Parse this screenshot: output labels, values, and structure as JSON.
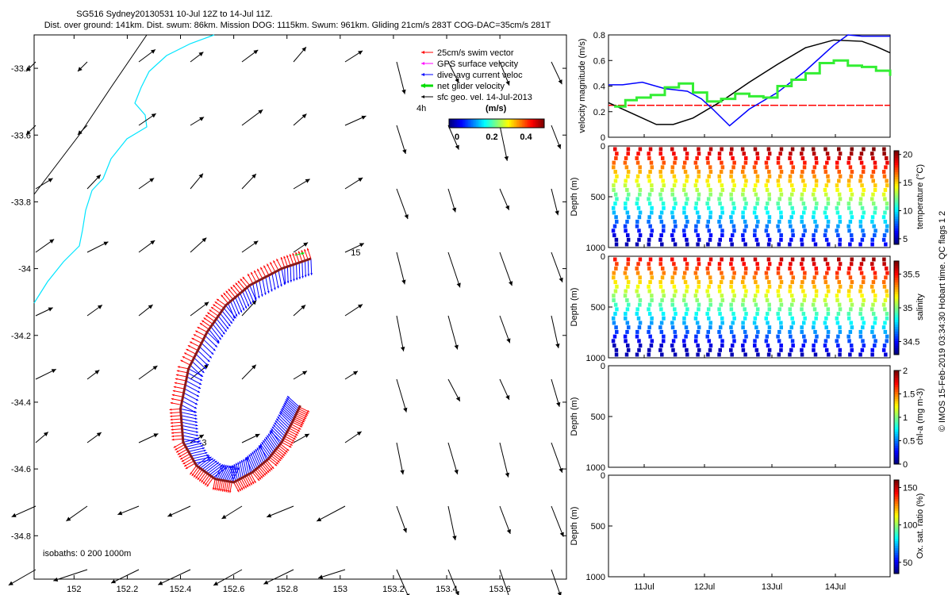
{
  "header": {
    "title_line1": "SG516 Sydney20130531 10-Jul 12Z to 14-Jul 11Z.",
    "title_line2": "Dist. over ground: 141km. Dist. swum: 86km. Mission DOG: 1115km. Swum: 961km. Gliding 21cm/s 283T COG-DAC=35cm/s 281T"
  },
  "colors": {
    "swim_vector": "#ff0000",
    "gps_surface": "#ff00ff",
    "dive_avg_current": "#0000ff",
    "net_glider": "#00dd00",
    "sfc_geo": "#000000",
    "coastline": "#00e5ff",
    "track": "#8b1a1a"
  },
  "chart_data": [
    {
      "type": "scatter",
      "name": "map",
      "xlim": [
        151.85,
        153.85
      ],
      "ylim": [
        -34.93,
        -33.3
      ],
      "xticks": [
        "152",
        "152.2",
        "152.4",
        "152.6",
        "152.8",
        "153",
        "153.2",
        "153.4",
        "153.6"
      ],
      "yticks": [
        "-33.4",
        "-33.6",
        "-33.8",
        "-34",
        "-34.2",
        "-34.4",
        "-34.6",
        "-34.8"
      ],
      "legend": {
        "placement": "top-right",
        "items": [
          {
            "label": "25cm/s swim vector",
            "color": "#ff0000"
          },
          {
            "label": "GPS surface velocity",
            "color": "#ff00ff"
          },
          {
            "label": "dive-avg current veloc",
            "color": "#0000ff"
          },
          {
            "label": "net glider velocity",
            "color": "#00dd00"
          },
          {
            "label": "sfc geo. vel. 14-Jul-2013",
            "color": "#000000"
          }
        ],
        "time_label": "4h",
        "colorbar_unit": "(m/s)",
        "colorbar_ticks": [
          "0",
          "0.2",
          "0.4"
        ]
      },
      "isobaths_label": "isobaths: 0   200  1000m",
      "annotations": [
        {
          "text": "15",
          "x": 153.04,
          "y": -33.96
        },
        {
          "text": "3",
          "x": 152.48,
          "y": -34.53
        }
      ],
      "track_points": [
        [
          152.89,
          -33.97
        ],
        [
          152.78,
          -34.0
        ],
        [
          152.66,
          -34.05
        ],
        [
          152.57,
          -34.11
        ],
        [
          152.5,
          -34.19
        ],
        [
          152.43,
          -34.3
        ],
        [
          152.4,
          -34.42
        ],
        [
          152.41,
          -34.52
        ],
        [
          152.46,
          -34.59
        ],
        [
          152.53,
          -34.63
        ],
        [
          152.6,
          -34.64
        ],
        [
          152.67,
          -34.61
        ],
        [
          152.73,
          -34.57
        ],
        [
          152.78,
          -34.52
        ],
        [
          152.82,
          -34.46
        ],
        [
          152.85,
          -34.41
        ]
      ]
    },
    {
      "type": "line",
      "name": "velocity",
      "ylabel": "velocity magnitude (m/s)",
      "ylim": [
        0,
        0.8
      ],
      "yticks": [
        "0",
        "0.2",
        "0.4",
        "0.6",
        "0.8"
      ],
      "series": [
        {
          "color": "#ff0000",
          "x": [
            0,
            1
          ],
          "y": [
            0.25,
            0.25
          ]
        },
        {
          "color": "#000000",
          "x": [
            0,
            0.1,
            0.17,
            0.23,
            0.3,
            0.4,
            0.5,
            0.6,
            0.7,
            0.8,
            0.9,
            0.95,
            1.0
          ],
          "y": [
            0.27,
            0.17,
            0.1,
            0.1,
            0.15,
            0.28,
            0.43,
            0.57,
            0.7,
            0.76,
            0.75,
            0.71,
            0.66
          ]
        },
        {
          "color": "#0000ff",
          "x": [
            0,
            0.05,
            0.12,
            0.2,
            0.28,
            0.33,
            0.37,
            0.43,
            0.5,
            0.6,
            0.7,
            0.8,
            0.85,
            0.9,
            1.0
          ],
          "y": [
            0.41,
            0.41,
            0.43,
            0.38,
            0.36,
            0.3,
            0.22,
            0.09,
            0.22,
            0.35,
            0.52,
            0.72,
            0.8,
            0.79,
            0.79
          ]
        },
        {
          "color": "#33ee33",
          "x": [
            0.02,
            0.06,
            0.1,
            0.15,
            0.2,
            0.25,
            0.3,
            0.35,
            0.4,
            0.45,
            0.5,
            0.55,
            0.6,
            0.65,
            0.7,
            0.75,
            0.8,
            0.85,
            0.9,
            0.95,
            1.0
          ],
          "y": [
            0.24,
            0.29,
            0.31,
            0.33,
            0.39,
            0.42,
            0.35,
            0.28,
            0.3,
            0.34,
            0.32,
            0.31,
            0.4,
            0.45,
            0.5,
            0.58,
            0.6,
            0.56,
            0.55,
            0.52,
            0.48
          ]
        }
      ]
    },
    {
      "type": "scatter",
      "name": "temperature",
      "ylabel": "Depth (m)",
      "colorbar_label": "temperature (°C)",
      "colorbar_ticks": [
        "5",
        "10",
        "15",
        "20"
      ],
      "ylim": [
        1000,
        0
      ],
      "yticks": [
        "0",
        "500",
        "1000"
      ]
    },
    {
      "type": "scatter",
      "name": "salinity",
      "ylabel": "Depth (m)",
      "colorbar_label": "salinity",
      "colorbar_ticks": [
        "34.5",
        "35",
        "35.5"
      ],
      "ylim": [
        1000,
        0
      ],
      "yticks": [
        "0",
        "500",
        "1000"
      ]
    },
    {
      "type": "scatter",
      "name": "chla",
      "ylabel": "Depth (m)",
      "colorbar_label": "chl-a (mg m-3)",
      "colorbar_ticks": [
        "0",
        "0.5",
        "1",
        "1.5",
        "2"
      ],
      "ylim": [
        1000,
        0
      ],
      "yticks": [
        "0",
        "500",
        "1000"
      ]
    },
    {
      "type": "scatter",
      "name": "oxygen",
      "ylabel": "Depth (m)",
      "colorbar_label": "Ox. sat. ratio (%)",
      "colorbar_ticks": [
        "50",
        "100",
        "150"
      ],
      "ylim": [
        1000,
        0
      ],
      "yticks": [
        "0",
        "500",
        "1000"
      ],
      "xticks": [
        "11Jul",
        "12Jul",
        "13Jul",
        "14Jul"
      ]
    }
  ],
  "side_note": "© IMOS 15-Feb-2019 03:34:30 Hobart time. QC flags 1  2"
}
